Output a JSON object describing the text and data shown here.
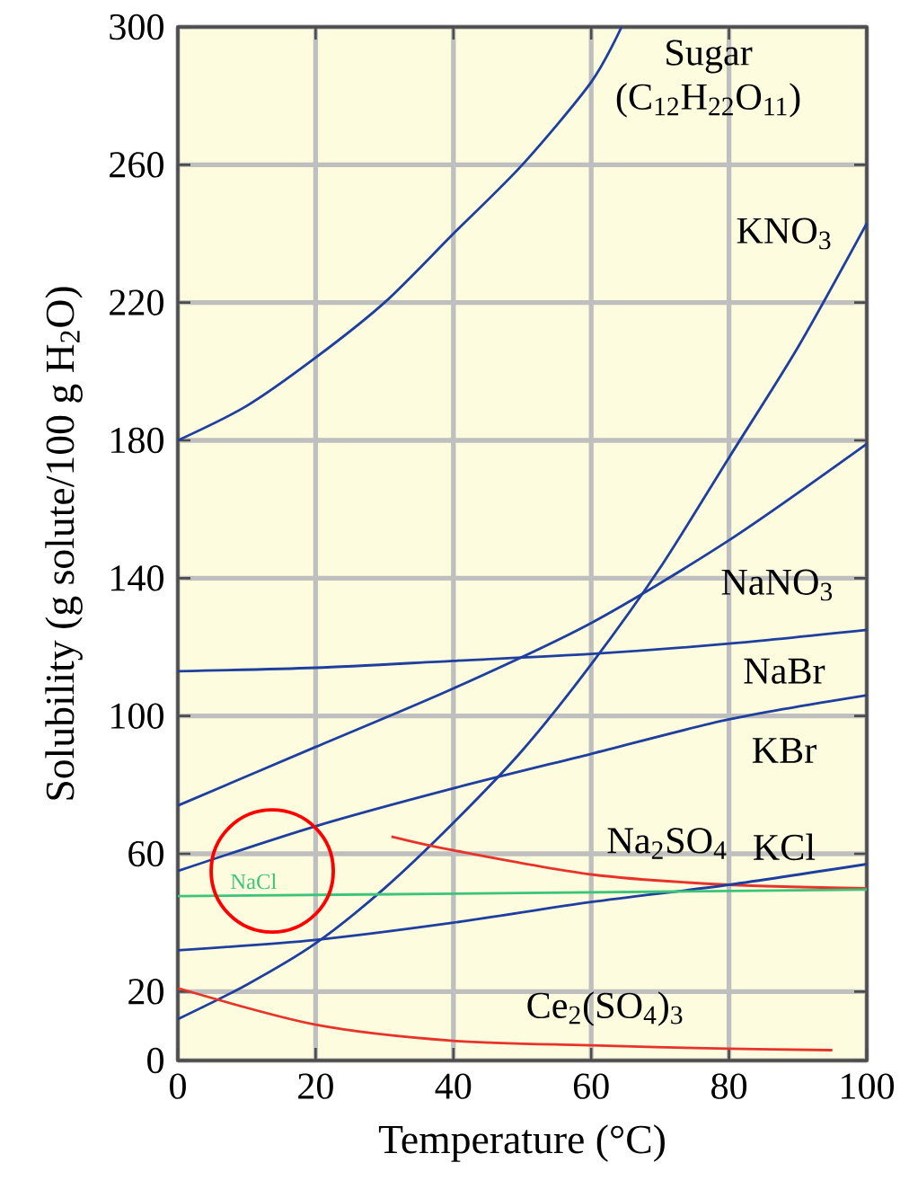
{
  "chart_data": {
    "type": "line",
    "xlabel": "Temperature (°C)",
    "ylabel": "Solubility (g solute/100 g H$_{2}$O)",
    "xlim": [
      0,
      100
    ],
    "ylim": [
      0,
      300
    ],
    "xticks": [
      0,
      20,
      40,
      60,
      80,
      100
    ],
    "yticks": [
      0,
      20,
      60,
      100,
      140,
      180,
      220,
      260,
      300
    ],
    "grid": true,
    "series": [
      {
        "name": "Sugar (C$_{12}$H$_{22}$O$_{11}$)",
        "color": "#1f3f9f",
        "x": [
          0,
          10,
          20,
          30,
          40,
          50,
          60,
          64.4
        ],
        "values": [
          180,
          190,
          204,
          220,
          240,
          260,
          284,
          300
        ]
      },
      {
        "name": "KNO$_{3}$",
        "color": "#1f3f9f",
        "x": [
          0,
          10,
          20,
          30,
          40,
          50,
          60,
          70,
          80,
          90,
          100
        ],
        "values": [
          12,
          22,
          34,
          50,
          69,
          90,
          115,
          143,
          175,
          207,
          243
        ]
      },
      {
        "name": "NaNO$_{3}$",
        "color": "#1f3f9f",
        "x": [
          0,
          20,
          40,
          60,
          80,
          100
        ],
        "values": [
          74,
          91,
          108,
          127,
          151,
          179
        ]
      },
      {
        "name": "NaBr",
        "color": "#1f3f9f",
        "x": [
          0,
          20,
          40,
          60,
          80,
          100
        ],
        "values": [
          113,
          114,
          116,
          118,
          121,
          125
        ]
      },
      {
        "name": "KBr",
        "color": "#1f3f9f",
        "x": [
          0,
          20,
          40,
          60,
          80,
          100
        ],
        "values": [
          55,
          68,
          79,
          89,
          99,
          106
        ]
      },
      {
        "name": "Na$_{2}$SO$_{4}$",
        "color": "#e8332a",
        "x": [
          31,
          40,
          60,
          80,
          100
        ],
        "values": [
          65,
          61,
          54,
          51,
          50
        ]
      },
      {
        "name": "KCl",
        "color": "#1f3f9f",
        "x": [
          0,
          20,
          40,
          60,
          80,
          100
        ],
        "values": [
          32,
          35,
          40,
          46,
          51,
          57
        ]
      },
      {
        "name": "Ce$_{2}$(SO$_{4}$)$_{3}$",
        "color": "#e8332a",
        "x": [
          0,
          20,
          40,
          60,
          80,
          95
        ],
        "values": [
          21,
          10.4,
          5.7,
          4.4,
          3.4,
          3
        ]
      },
      {
        "name": "NaCl",
        "color": "#3cc47a",
        "x": [
          0,
          50,
          100
        ],
        "values": [
          47.7,
          48.6,
          49.6
        ]
      }
    ]
  }
}
